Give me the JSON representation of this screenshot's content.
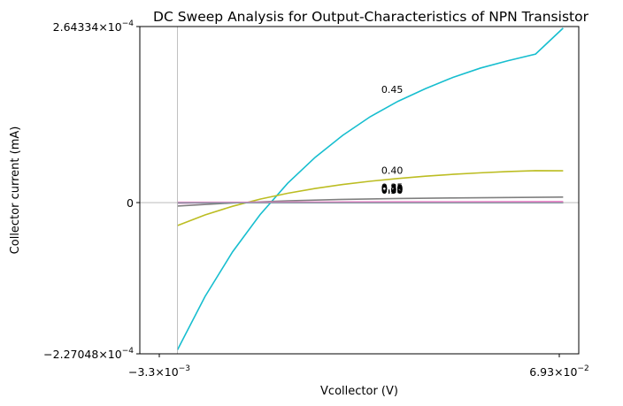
{
  "chart_data": {
    "type": "line",
    "title": "DC Sweep Analysis for Output-Characteristics of NPN Transistor",
    "xlabel": "Vcollector (V)",
    "ylabel": "Collector current (mA)",
    "xlim": [
      -0.0033,
      0.0693
    ],
    "ylim": [
      -0.000227048,
      0.000264334
    ],
    "x_ticks": [
      {
        "value": -0.0033,
        "mantissa": "−3.3",
        "exponent": "−3"
      },
      {
        "value": 0.0693,
        "mantissa": "6.93",
        "exponent": "−2"
      }
    ],
    "y_ticks": [
      {
        "value": 0.000264334,
        "mantissa": "2.64334",
        "exponent": "−4"
      },
      {
        "value": 0,
        "mantissa": "0",
        "exponent": ""
      },
      {
        "value": -0.000227048,
        "mantissa": "−2.27048",
        "exponent": "−4"
      }
    ],
    "grid": false,
    "reference_lines": {
      "x": 0,
      "y": 0
    },
    "label_x": 0.037,
    "series": [
      {
        "name": "0.45",
        "color": "#17becf",
        "label_y": 0.000165,
        "x": [
          0,
          0.005,
          0.01,
          0.015,
          0.02,
          0.025,
          0.03,
          0.035,
          0.04,
          0.045,
          0.05,
          0.055,
          0.06,
          0.065,
          0.07
        ],
        "y": [
          -0.000221,
          -0.000141,
          -7.4e-05,
          -1.8e-05,
          2.9e-05,
          6.8e-05,
          0.000101,
          0.000129,
          0.000152,
          0.000171,
          0.000188,
          0.000202,
          0.000213,
          0.000223,
          0.000262
        ]
      },
      {
        "name": "0.40",
        "color": "#bcbd22",
        "label_y": 4.33e-05,
        "x": [
          0,
          0.005,
          0.01,
          0.015,
          0.02,
          0.025,
          0.03,
          0.035,
          0.04,
          0.045,
          0.05,
          0.055,
          0.06,
          0.065,
          0.07
        ],
        "y": [
          -3.45e-05,
          -1.85e-05,
          -5.5e-06,
          5.2e-06,
          1.4e-05,
          2.12e-05,
          2.72e-05,
          3.21e-05,
          3.62e-05,
          3.96e-05,
          4.24e-05,
          4.47e-05,
          4.66e-05,
          4.8e-05,
          4.78e-05
        ]
      },
      {
        "name": "0.35",
        "color": "#7f7f7f",
        "label_y": 1.83e-05,
        "x": [
          0,
          0.01,
          0.02,
          0.03,
          0.04,
          0.05,
          0.06,
          0.07
        ],
        "y": [
          -5.2e-06,
          -5e-07,
          2.7e-06,
          4.8e-06,
          6.1e-06,
          7e-06,
          7.6e-06,
          8.3e-06
        ]
      },
      {
        "name": "0.30",
        "color": "#e377c2",
        "label_y": 1.68e-05,
        "x": [
          0,
          0.01,
          0.02,
          0.03,
          0.04,
          0.05,
          0.06,
          0.07
        ],
        "y": [
          -8e-07,
          1e-07,
          6e-07,
          9e-07,
          1.1e-06,
          1.2e-06,
          1.3e-06,
          1.4e-06
        ]
      },
      {
        "name": "0.25",
        "color": "#8c564b",
        "label_y": 1.63e-05,
        "x": [
          0,
          0.07
        ],
        "y": [
          -1e-07,
          2e-07
        ]
      },
      {
        "name": "0.20",
        "color": "#9467bd",
        "label_y": 1.58e-05,
        "x": [
          0,
          0.07
        ],
        "y": [
          0,
          1e-07
        ]
      },
      {
        "name": "0.15",
        "color": "#d62728",
        "label_y": 1.52e-05,
        "x": [
          0,
          0.07
        ],
        "y": [
          0,
          0
        ]
      },
      {
        "name": "0.10",
        "color": "#2ca02c",
        "label_y": 1.47e-05,
        "x": [
          0,
          0.07
        ],
        "y": [
          0,
          0
        ]
      },
      {
        "name": "0.05",
        "color": "#ff7f0e",
        "label_y": 1.42e-05,
        "x": [
          0,
          0.07
        ],
        "y": [
          0,
          0
        ]
      },
      {
        "name": "0.00",
        "color": "#1f77b4",
        "label_y": 1.37e-05,
        "x": [
          0,
          0.07
        ],
        "y": [
          0,
          0
        ]
      },
      {
        "name": "0.30",
        "color": "#e377c2",
        "label_y": 1.32e-05,
        "x": [
          0,
          0.07
        ],
        "y": [
          5e-07,
          4e-07
        ]
      }
    ]
  }
}
